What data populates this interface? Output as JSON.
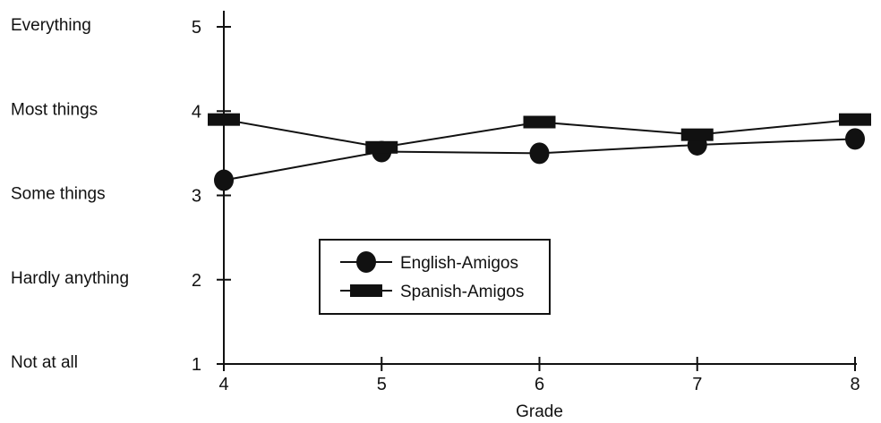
{
  "chart_data": {
    "type": "line",
    "title": "",
    "xlabel": "Grade",
    "ylabel": "",
    "x": [
      4,
      5,
      6,
      7,
      8
    ],
    "xlim": [
      4,
      8
    ],
    "ylim": [
      1,
      5
    ],
    "y_ticks": [
      1,
      2,
      3,
      4,
      5
    ],
    "y_category_labels": [
      "Not at all",
      "Hardly anything",
      "Some things",
      "Most things",
      "Everything"
    ],
    "grid": false,
    "legend_position": "center-left",
    "series": [
      {
        "name": "English-Amigos",
        "marker": "circle",
        "values": [
          3.18,
          3.52,
          3.5,
          3.6,
          3.67
        ]
      },
      {
        "name": "Spanish-Amigos",
        "marker": "rectangle",
        "values": [
          3.9,
          3.57,
          3.87,
          3.72,
          3.9
        ]
      }
    ]
  }
}
